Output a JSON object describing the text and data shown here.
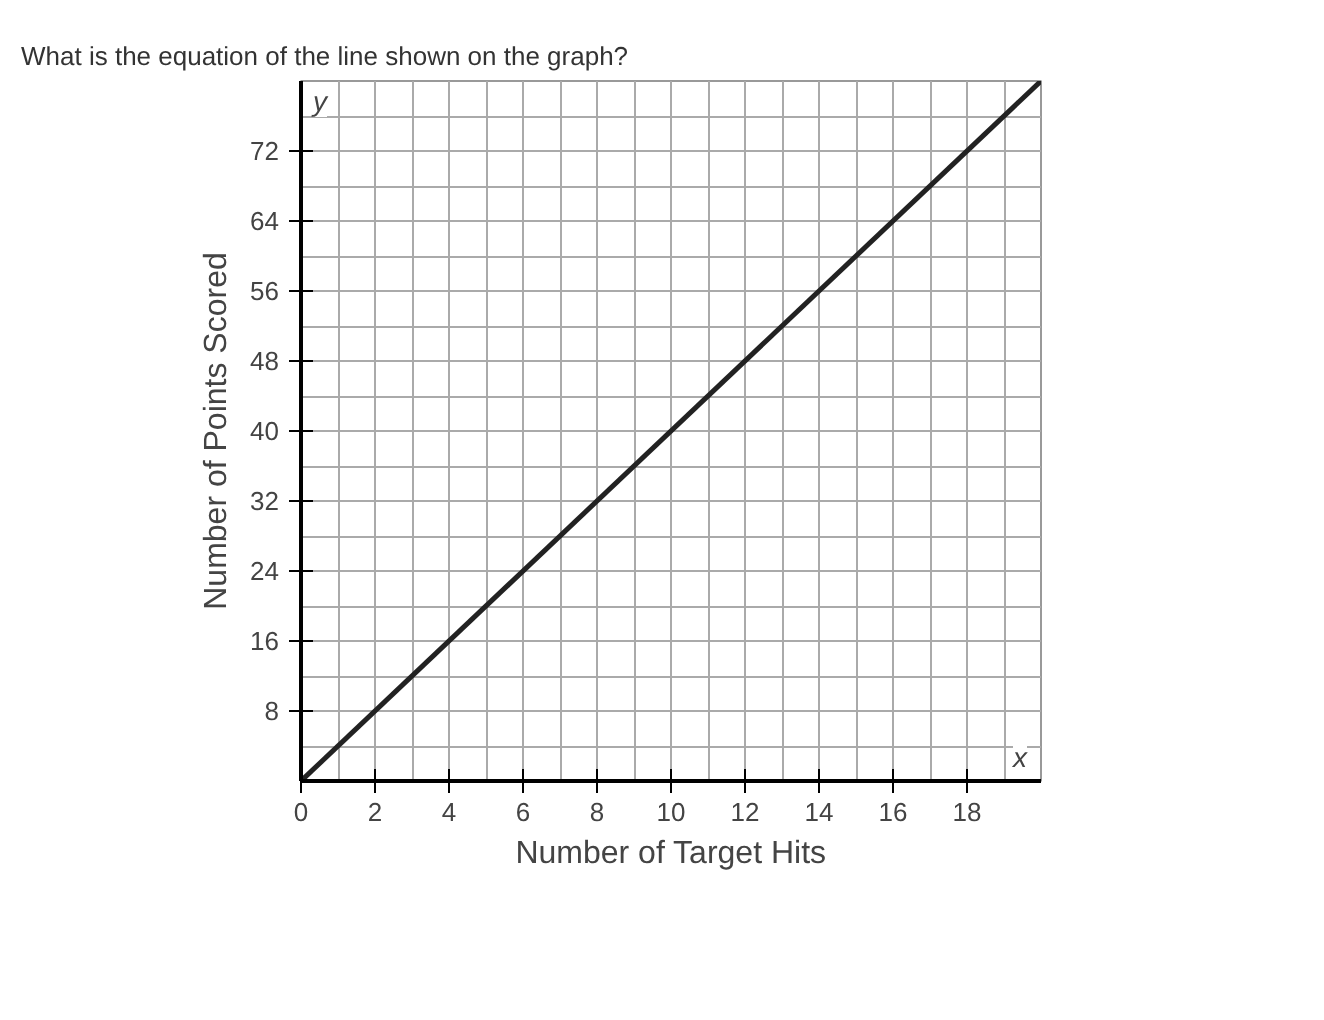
{
  "chart_data": {
    "type": "line",
    "title": "What is the equation of the line shown on the graph?",
    "xlabel": "Number of Target Hits",
    "ylabel": "Number of Points Scored",
    "x": [
      0,
      20
    ],
    "series": [
      {
        "color": "#222222",
        "values": [
          0,
          80
        ]
      }
    ],
    "xlim": [
      0,
      20
    ],
    "ylim": [
      0,
      80
    ],
    "xticks": [
      0,
      2,
      4,
      6,
      8,
      10,
      12,
      14,
      16,
      18
    ],
    "yticks": [
      8,
      16,
      24,
      32,
      40,
      48,
      56,
      64,
      72
    ],
    "annotations": [
      "y",
      "x"
    ],
    "grid": true,
    "marker": "none",
    "line_style": "solid"
  }
}
